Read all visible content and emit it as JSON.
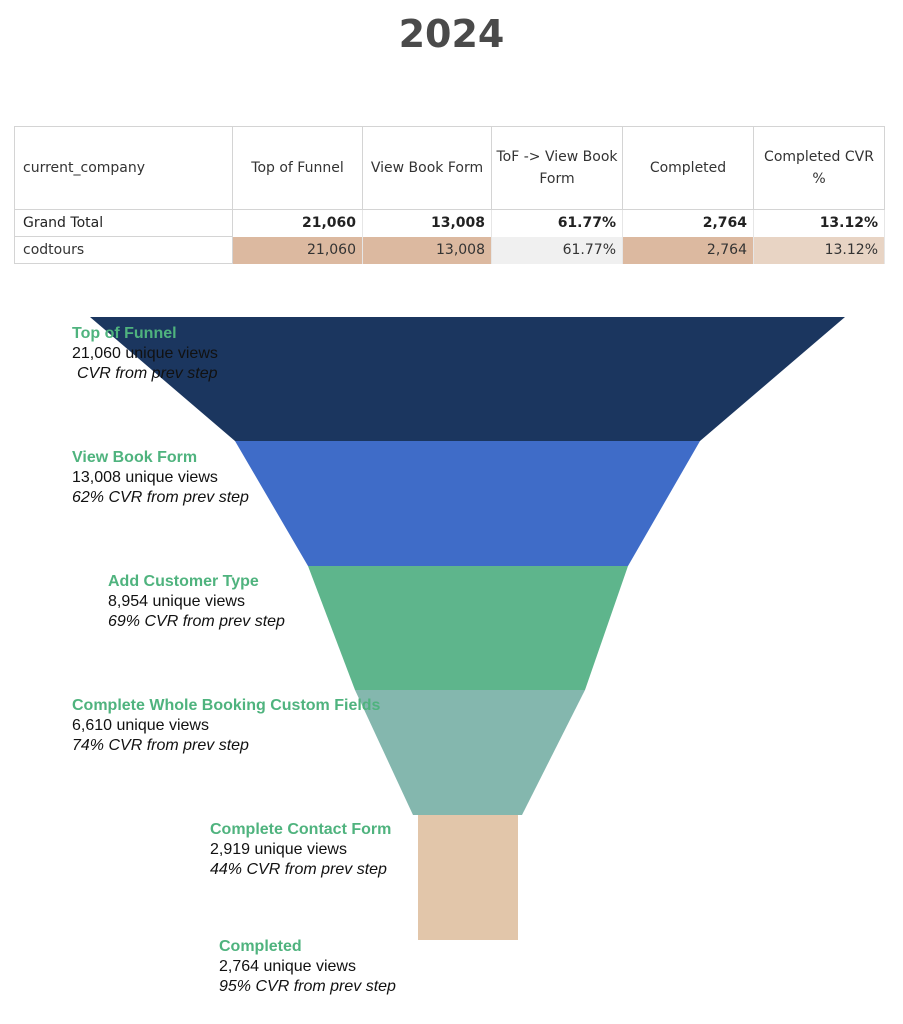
{
  "title": "2024",
  "table": {
    "headers": [
      "current_company",
      "Top of Funnel",
      "View Book Form",
      "ToF -> View Book Form",
      "Completed",
      "Completed CVR %"
    ],
    "rows": [
      {
        "label": "Grand Total",
        "cells": [
          "21,060",
          "13,008",
          "61.77%",
          "2,764",
          "13.12%"
        ]
      },
      {
        "label": "codtours",
        "cells": [
          "21,060",
          "13,008",
          "61.77%",
          "2,764",
          "13.12%"
        ]
      }
    ],
    "highlight_colors": [
      "#dcb9a0",
      "#dcb9a0",
      "#f0f0f0",
      "#dcb9a0",
      "#e8d4c4"
    ]
  },
  "chart_data": {
    "type": "funnel",
    "stages": [
      {
        "name": "Top of Funnel",
        "views_text": "21,060 unique views",
        "cvr_text": "CVR from prev step",
        "value": 21060,
        "cvr": null,
        "color": "#1b365f"
      },
      {
        "name": "View Book Form",
        "views_text": "13,008 unique views",
        "cvr_text": "62% CVR from prev step",
        "value": 13008,
        "cvr": 62,
        "color": "#3f6cc8"
      },
      {
        "name": "Add Customer Type",
        "views_text": "8,954 unique views",
        "cvr_text": "69% CVR from prev step",
        "value": 8954,
        "cvr": 69,
        "color": "#5eb58c"
      },
      {
        "name": "Complete Whole Booking Custom Fields",
        "views_text": "6,610 unique views",
        "cvr_text": "74% CVR from prev step",
        "value": 6610,
        "cvr": 74,
        "color": "#84b7ae"
      },
      {
        "name": "Complete Contact Form",
        "views_text": "2,919 unique views",
        "cvr_text": "44% CVR from prev step",
        "value": 2919,
        "cvr": 44,
        "color": "#e2c6aa"
      },
      {
        "name": "Completed",
        "views_text": "2,764 unique views",
        "cvr_text": "95% CVR from prev step",
        "value": 2764,
        "cvr": 95,
        "color": null
      }
    ]
  }
}
